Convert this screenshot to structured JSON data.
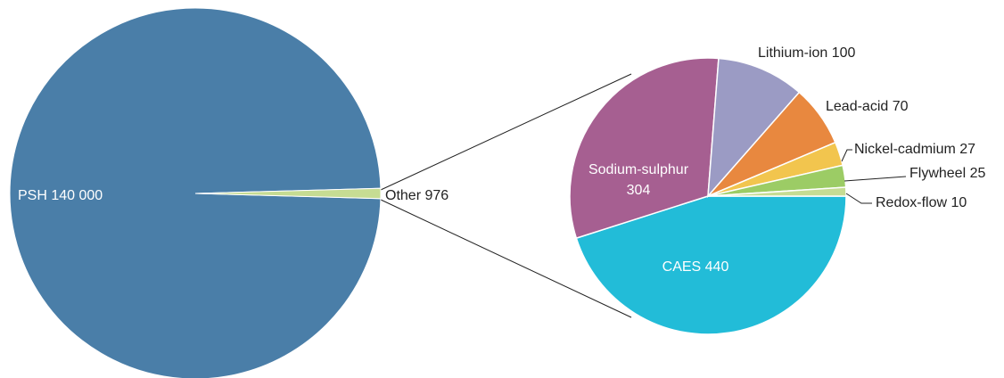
{
  "chart_data": {
    "type": "pie",
    "title": "",
    "main_pie": {
      "slices": [
        {
          "name": "PSH",
          "value": 140000,
          "label": "PSH 140 000",
          "color": "#4a7ea8",
          "label_color": "#ffffff"
        },
        {
          "name": "Other",
          "value": 976,
          "label": "Other  976",
          "color": "#c6dc93",
          "label_color": "#222222"
        }
      ]
    },
    "breakdown_pie": {
      "of": "Other",
      "slices": [
        {
          "name": "CAES",
          "value": 440,
          "label": "CAES  440",
          "color": "#22bcd8",
          "label_color": "#ffffff"
        },
        {
          "name": "Sodium-sulphur",
          "value": 304,
          "label_lines": [
            "Sodium-sulphur",
            "304"
          ],
          "color": "#a65f91",
          "label_color": "#ffffff"
        },
        {
          "name": "Lithium-ion",
          "value": 100,
          "label": "Lithium-ion  100",
          "color": "#9b9bc4",
          "label_color": "#222222"
        },
        {
          "name": "Lead-acid",
          "value": 70,
          "label": "Lead-acid  70",
          "color": "#e8883f",
          "label_color": "#222222"
        },
        {
          "name": "Nickel-cadmium",
          "value": 27,
          "label": "Nickel-cadmium  27",
          "color": "#f2c54e",
          "label_color": "#222222"
        },
        {
          "name": "Flywheel",
          "value": 25,
          "label": "Flywheel  25",
          "color": "#9ccc65",
          "label_color": "#222222"
        },
        {
          "name": "Redox-flow",
          "value": 10,
          "label": "Redox-flow  10",
          "color": "#c6dc93",
          "label_color": "#222222"
        }
      ]
    }
  }
}
